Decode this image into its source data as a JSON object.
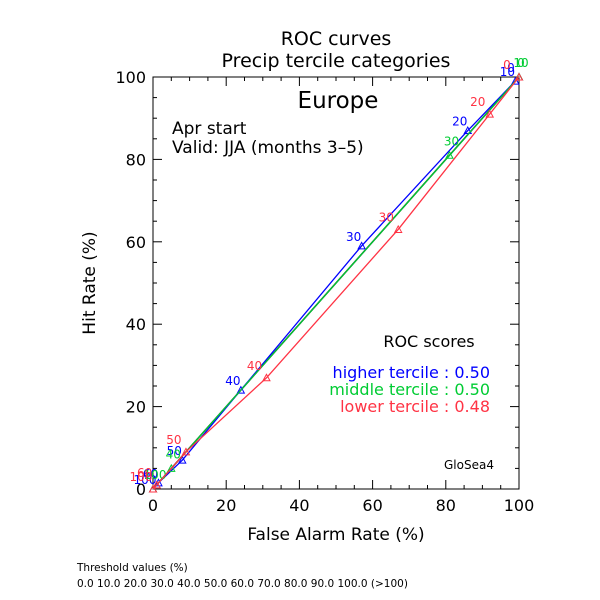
{
  "chart_data": {
    "type": "line",
    "title": "ROC curves",
    "subtitle": "Precip tercile categories",
    "region": "Europe",
    "start": "Apr start",
    "valid": "Valid: JJA (months 3–5)",
    "xlabel": "False Alarm Rate (%)",
    "ylabel": "Hit Rate (%)",
    "xlim": [
      0,
      100
    ],
    "ylim": [
      0,
      100
    ],
    "x_ticks": [
      0,
      20,
      40,
      60,
      80,
      100
    ],
    "y_ticks": [
      0,
      20,
      40,
      60,
      80,
      100
    ],
    "grid": false,
    "model": "GloSea4",
    "scores_title": "ROC scores",
    "series": [
      {
        "name": "higher tercile",
        "score_label": "higher tercile : 0.50",
        "color": "#0000ff",
        "marker": "triangle",
        "points": [
          {
            "x": 100,
            "y": 100,
            "label": "0"
          },
          {
            "x": 99,
            "y": 99,
            "label": "10"
          },
          {
            "x": 86,
            "y": 87,
            "label": "20"
          },
          {
            "x": 57,
            "y": 59,
            "label": "30"
          },
          {
            "x": 24,
            "y": 24,
            "label": "40"
          },
          {
            "x": 8,
            "y": 7,
            "label": "50"
          },
          {
            "x": 1.5,
            "y": 1.5,
            "label": "60"
          },
          {
            "x": 0,
            "y": 0,
            "label": "100"
          }
        ]
      },
      {
        "name": "middle tercile",
        "score_label": "middle tercile : 0.50",
        "color": "#00cc33",
        "marker": "triangle",
        "points": [
          {
            "x": 100,
            "y": 100,
            "label": "0"
          },
          {
            "x": 100,
            "y": 100,
            "label": "10"
          },
          {
            "x": 81,
            "y": 81,
            "label": "30"
          },
          {
            "x": 5,
            "y": 5,
            "label": "40"
          },
          {
            "x": 0,
            "y": 0,
            "label": "100"
          }
        ]
      },
      {
        "name": "lower tercile",
        "score_label": "lower tercile : 0.48",
        "color": "#ff3344",
        "marker": "triangle",
        "points": [
          {
            "x": 100,
            "y": 100,
            "label": "0"
          },
          {
            "x": 92,
            "y": 91,
            "label": "20"
          },
          {
            "x": 67,
            "y": 63,
            "label": "30"
          },
          {
            "x": 31,
            "y": 27,
            "label": "40"
          },
          {
            "x": 9,
            "y": 9,
            "label": "50"
          },
          {
            "x": 1,
            "y": 1,
            "label": "60"
          },
          {
            "x": 0,
            "y": 0,
            "label": "100"
          }
        ]
      }
    ],
    "diagonal_color": "#000000"
  },
  "footer": {
    "threshold_title": "Threshold values (%)",
    "threshold_values": "0.0 10.0 20.0 30.0 40.0 50.0 60.0 70.0 80.0 90.0 100.0 (>100)"
  }
}
